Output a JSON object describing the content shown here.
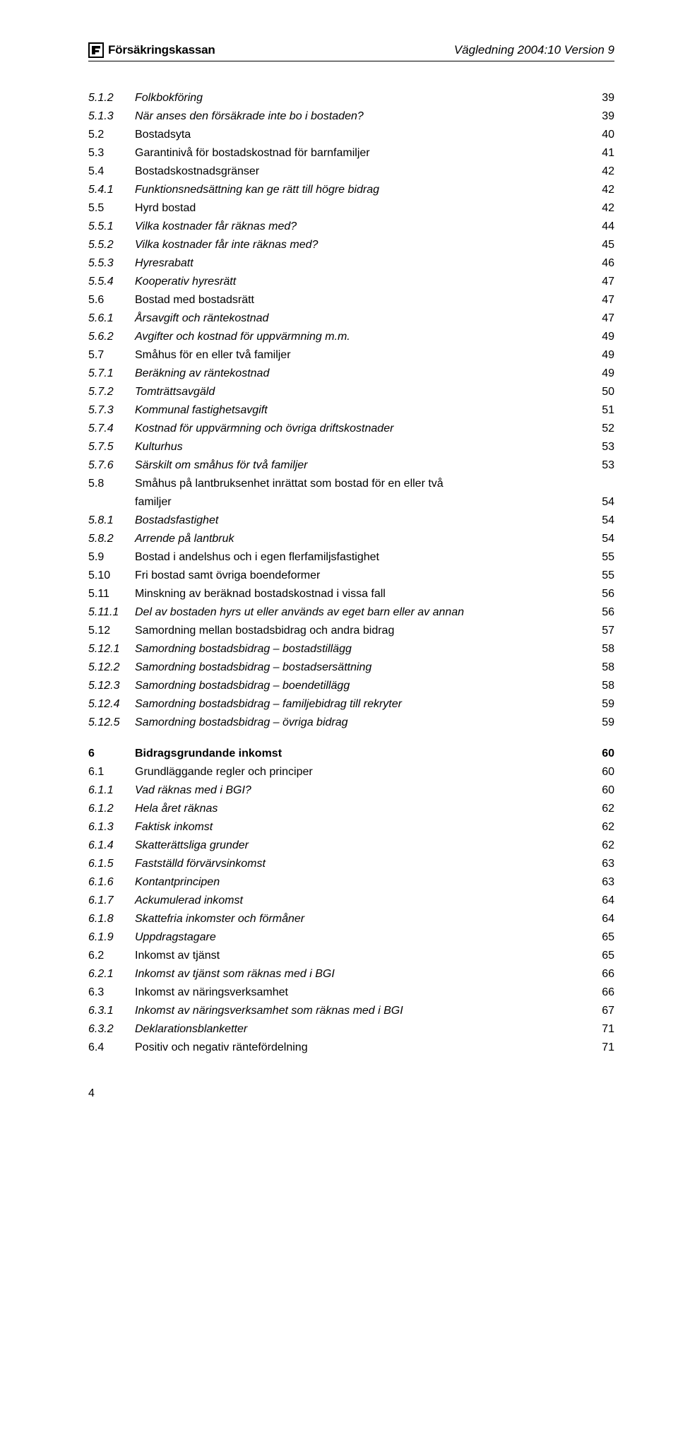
{
  "header": {
    "brand": "Försäkringskassan",
    "right": "Vägledning 2004:10 Version 9"
  },
  "page_number": "4",
  "toc": [
    {
      "num": "5.1.2",
      "title": "Folkbokföring",
      "page": "39",
      "italic": true
    },
    {
      "num": "5.1.3",
      "title": "När anses den försäkrade inte bo i bostaden?",
      "page": "39",
      "italic": true
    },
    {
      "num": "5.2",
      "title": "Bostadsyta",
      "page": "40"
    },
    {
      "num": "5.3",
      "title": "Garantinivå för bostadskostnad för barnfamiljer",
      "page": "41"
    },
    {
      "num": "5.4",
      "title": "Bostadskostnadsgränser",
      "page": "42"
    },
    {
      "num": "5.4.1",
      "title": "Funktionsnedsättning kan ge rätt till högre bidrag",
      "page": "42",
      "italic": true
    },
    {
      "num": "5.5",
      "title": "Hyrd bostad",
      "page": "42"
    },
    {
      "num": "5.5.1",
      "title": "Vilka kostnader får räknas med?",
      "page": "44",
      "italic": true
    },
    {
      "num": "5.5.2",
      "title": "Vilka kostnader får inte räknas med?",
      "page": "45",
      "italic": true
    },
    {
      "num": "5.5.3",
      "title": "Hyresrabatt",
      "page": "46",
      "italic": true
    },
    {
      "num": "5.5.4",
      "title": "Kooperativ hyresrätt",
      "page": "47",
      "italic": true
    },
    {
      "num": "5.6",
      "title": "Bostad med bostadsrätt",
      "page": "47"
    },
    {
      "num": "5.6.1",
      "title": "Årsavgift och räntekostnad",
      "page": "47",
      "italic": true
    },
    {
      "num": "5.6.2",
      "title": "Avgifter och kostnad för uppvärmning m.m.",
      "page": "49",
      "italic": true
    },
    {
      "num": "5.7",
      "title": "Småhus för en eller två familjer",
      "page": "49"
    },
    {
      "num": "5.7.1",
      "title": "Beräkning av räntekostnad",
      "page": "49",
      "italic": true
    },
    {
      "num": "5.7.2",
      "title": "Tomträttsavgäld",
      "page": "50",
      "italic": true
    },
    {
      "num": "5.7.3",
      "title": "Kommunal fastighetsavgift",
      "page": "51",
      "italic": true
    },
    {
      "num": "5.7.4",
      "title": "Kostnad för uppvärmning och övriga driftskostnader",
      "page": "52",
      "italic": true
    },
    {
      "num": "5.7.5",
      "title": "Kulturhus",
      "page": "53",
      "italic": true
    },
    {
      "num": "5.7.6",
      "title": "Särskilt om småhus för två familjer",
      "page": "53",
      "italic": true
    },
    {
      "num": "5.8",
      "title": "Småhus på lantbruksenhet inrättat som bostad för en eller två",
      "cont": "familjer",
      "page": "54"
    },
    {
      "num": "5.8.1",
      "title": "Bostadsfastighet",
      "page": "54",
      "italic": true
    },
    {
      "num": "5.8.2",
      "title": "Arrende på lantbruk",
      "page": "54",
      "italic": true
    },
    {
      "num": "5.9",
      "title": "Bostad i andelshus och i egen flerfamiljsfastighet",
      "page": "55"
    },
    {
      "num": "5.10",
      "title": "Fri bostad samt övriga boendeformer",
      "page": "55"
    },
    {
      "num": "5.11",
      "title": "Minskning av beräknad bostadskostnad i vissa fall",
      "page": "56"
    },
    {
      "num": "5.11.1",
      "title": "Del av bostaden hyrs ut eller används av eget barn eller av annan",
      "page": "56",
      "italic": true
    },
    {
      "num": "5.12",
      "title": "Samordning mellan bostadsbidrag och andra bidrag",
      "page": "57"
    },
    {
      "num": "5.12.1",
      "title": "Samordning bostadsbidrag – bostadstillägg",
      "page": "58",
      "italic": true
    },
    {
      "num": "5.12.2",
      "title": "Samordning bostadsbidrag – bostadsersättning",
      "page": "58",
      "italic": true
    },
    {
      "num": "5.12.3",
      "title": "Samordning bostadsbidrag – boendetillägg",
      "page": "58",
      "italic": true
    },
    {
      "num": "5.12.4",
      "title": "Samordning bostadsbidrag – familjebidrag till rekryter",
      "page": "59",
      "italic": true
    },
    {
      "num": "5.12.5",
      "title": "Samordning bostadsbidrag – övriga bidrag",
      "page": "59",
      "italic": true
    },
    {
      "gap": true
    },
    {
      "num": "6",
      "title": "Bidragsgrundande inkomst",
      "page": "60",
      "bold": true
    },
    {
      "num": "6.1",
      "title": "Grundläggande regler och principer",
      "page": "60"
    },
    {
      "num": "6.1.1",
      "title": "Vad räknas med i BGI?",
      "page": "60",
      "italic": true
    },
    {
      "num": "6.1.2",
      "title": "Hela året räknas",
      "page": "62",
      "italic": true
    },
    {
      "num": "6.1.3",
      "title": "Faktisk inkomst",
      "page": "62",
      "italic": true
    },
    {
      "num": "6.1.4",
      "title": "Skatterättsliga grunder",
      "page": "62",
      "italic": true
    },
    {
      "num": "6.1.5",
      "title": "Fastställd förvärvsinkomst",
      "page": "63",
      "italic": true
    },
    {
      "num": "6.1.6",
      "title": "Kontantprincipen",
      "page": "63",
      "italic": true
    },
    {
      "num": "6.1.7",
      "title": "Ackumulerad inkomst",
      "page": "64",
      "italic": true
    },
    {
      "num": "6.1.8",
      "title": "Skattefria inkomster och förmåner",
      "page": "64",
      "italic": true
    },
    {
      "num": "6.1.9",
      "title": "Uppdragstagare",
      "page": "65",
      "italic": true
    },
    {
      "num": "6.2",
      "title": "Inkomst av tjänst",
      "page": "65"
    },
    {
      "num": "6.2.1",
      "title": "Inkomst av tjänst som räknas med i BGI",
      "page": "66",
      "italic": true
    },
    {
      "num": "6.3",
      "title": "Inkomst av näringsverksamhet",
      "page": "66"
    },
    {
      "num": "6.3.1",
      "title": "Inkomst av näringsverksamhet som räknas med i BGI",
      "page": "67",
      "italic": true
    },
    {
      "num": "6.3.2",
      "title": "Deklarationsblanketter",
      "page": "71",
      "italic": true
    },
    {
      "num": "6.4",
      "title": "Positiv och negativ räntefördelning",
      "page": "71"
    }
  ]
}
